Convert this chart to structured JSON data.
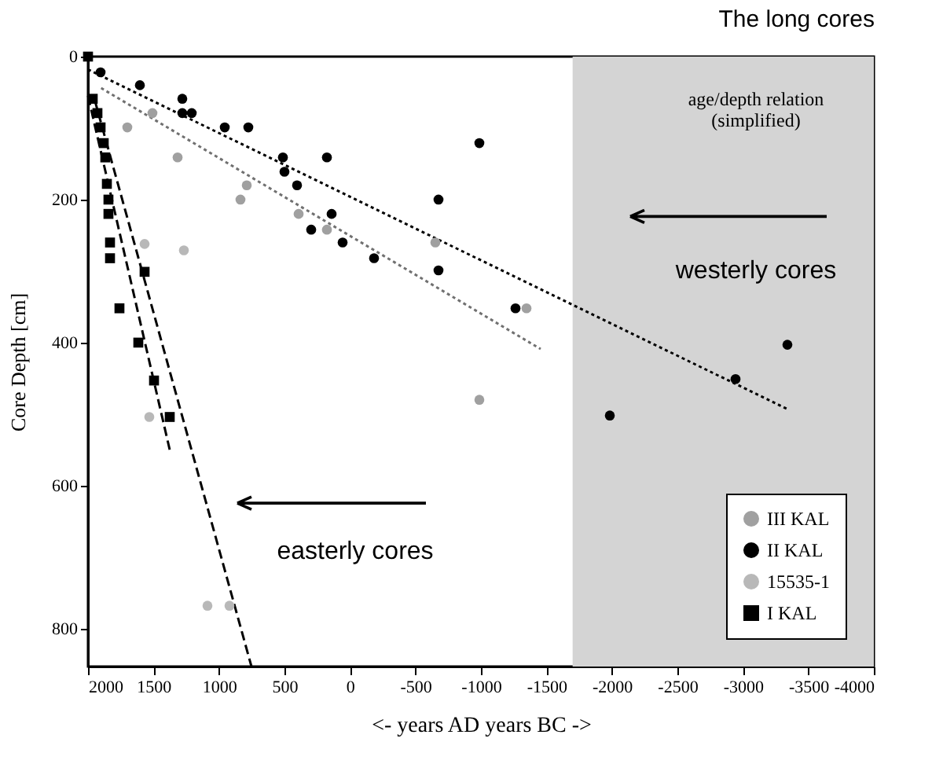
{
  "chart_data": {
    "type": "scatter",
    "title": "The long cores",
    "xlabel": "<-  years AD                    years BC ->",
    "ylabel": "Core Depth [cm]",
    "xlim": [
      2000,
      -4000
    ],
    "xticks": [
      2000,
      1500,
      1000,
      500,
      0,
      -500,
      -1000,
      -1500,
      -2000,
      -2500,
      -3000,
      -3500,
      -4000
    ],
    "ylim": [
      853,
      0
    ],
    "yticks": [
      0,
      200,
      400,
      600,
      800
    ],
    "grid": false,
    "legend": "bottom right",
    "bands": [
      {
        "axis": "x",
        "from": -1700,
        "to": -4000,
        "color": "#d4d4d4"
      }
    ],
    "annotations": [
      "age/depth relation",
      "(simplified)",
      "westerly cores",
      "easterly cores"
    ],
    "series": [
      {
        "name": "III KAL",
        "marker": "circle",
        "color": "#a0a0a0",
        "x": [
          1700,
          1508,
          1316,
          836,
          788,
          392,
          176,
          -652,
          -988,
          -1348
        ],
        "values": [
          99,
          79,
          141,
          200,
          180,
          220,
          242,
          260,
          480,
          352
        ]
      },
      {
        "name": "II KAL",
        "marker": "circle",
        "color": "#000000",
        "x": [
          1904,
          1604,
          1280,
          1280,
          1208,
          956,
          776,
          512,
          176,
          500,
          404,
          140,
          296,
          56,
          -184,
          -988,
          -676,
          -676,
          -1264,
          -2944,
          -1984,
          -3340
        ],
        "values": [
          22,
          40,
          59,
          79,
          79,
          99,
          99,
          141,
          141,
          161,
          180,
          220,
          242,
          260,
          282,
          121,
          200,
          299,
          352,
          451,
          502,
          403
        ]
      },
      {
        "name": "15535-1",
        "marker": "circle",
        "color": "#b8b8b8",
        "x": [
          1568,
          1268,
          1532,
          1088,
          920
        ],
        "values": [
          262,
          271,
          504,
          768,
          768
        ]
      },
      {
        "name": "I KAL",
        "marker": "square",
        "color": "#000000",
        "x": [
          2000,
          1964,
          1928,
          1904,
          1880,
          1868,
          1856,
          1844,
          1844,
          1832,
          1832,
          1760,
          1616,
          1568,
          1496,
          1376
        ],
        "values": [
          0,
          59,
          79,
          99,
          121,
          141,
          178,
          200,
          220,
          260,
          282,
          352,
          400,
          301,
          453,
          504
        ]
      },
      {
        "type": "line",
        "line_style": "dotted",
        "color": "#707070",
        "x": [
          1900,
          -1456
        ],
        "values": [
          44,
          409
        ]
      },
      {
        "type": "line",
        "line_style": "dotted",
        "color": "#000000",
        "x": [
          2000,
          -3340
        ],
        "values": [
          18,
          493
        ]
      },
      {
        "type": "line",
        "line_style": "dashed",
        "color": "#000000",
        "x": [
          2000,
          1376
        ],
        "values": [
          55,
          550
        ]
      },
      {
        "type": "line",
        "line_style": "dashed",
        "color": "#000000",
        "x": [
          1950,
          752
        ],
        "values": [
          60,
          853
        ]
      }
    ]
  }
}
